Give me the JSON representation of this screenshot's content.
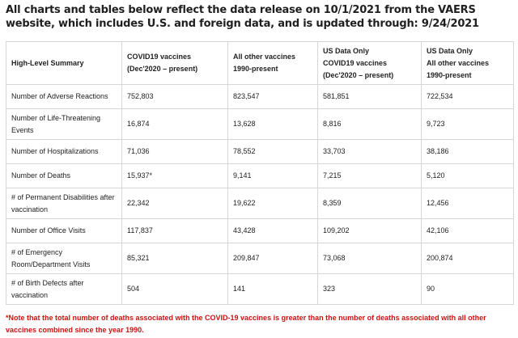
{
  "heading": "All charts and tables below reflect the data release on 10/1/2021 from the VAERS website, which includes U.S. and foreign data, and is updated through: 9/24/2021",
  "table": {
    "headers": [
      [
        "High-Level Summary"
      ],
      [
        "COVID19 vaccines",
        "(Dec'2020 – present)"
      ],
      [
        "All other vaccines",
        "1990-present"
      ],
      [
        "US Data Only",
        "COVID19 vaccines",
        "(Dec'2020 – present)"
      ],
      [
        "US Data Only",
        "All other vaccines",
        "1990-present"
      ]
    ],
    "rows": [
      {
        "label": "Number of Adverse Reactions",
        "covid": "752,803",
        "other": "823,547",
        "us_covid": "581,851",
        "us_other": "722,534"
      },
      {
        "label": "Number of Life-Threatening Events",
        "covid": "16,874",
        "other": "13,628",
        "us_covid": "8,816",
        "us_other": "9,723"
      },
      {
        "label": "Number of Hospitalizations",
        "covid": "71,036",
        "other": "78,552",
        "us_covid": "33,703",
        "us_other": "38,186"
      },
      {
        "label": "Number of Deaths",
        "covid": "15,937*",
        "other": "9,141",
        "us_covid": "7,215",
        "us_other": "5,120"
      },
      {
        "label": "# of Permanent Disabilities after vaccination",
        "covid": "22,342",
        "other": "19,622",
        "us_covid": "8,359",
        "us_other": "12,456"
      },
      {
        "label": "Number of Office Visits",
        "covid": "117,837",
        "other": "43,428",
        "us_covid": "109,202",
        "us_other": "42,106"
      },
      {
        "label": "# of Emergency Room/Department Visits",
        "covid": "85,321",
        "other": "209,847",
        "us_covid": "73,068",
        "us_other": "200,874"
      },
      {
        "label": "# of Birth Defects after vaccination",
        "covid": "504",
        "other": "141",
        "us_covid": "323",
        "us_other": "90"
      }
    ]
  },
  "note": "*Note that the total number of deaths associated with the COVID-19 vaccines is greater than the number of deaths associated with all other vaccines combined since the year 1990.",
  "colors": {
    "note": "#cc1111",
    "border": "#d6d6d6",
    "text": "#222222"
  }
}
